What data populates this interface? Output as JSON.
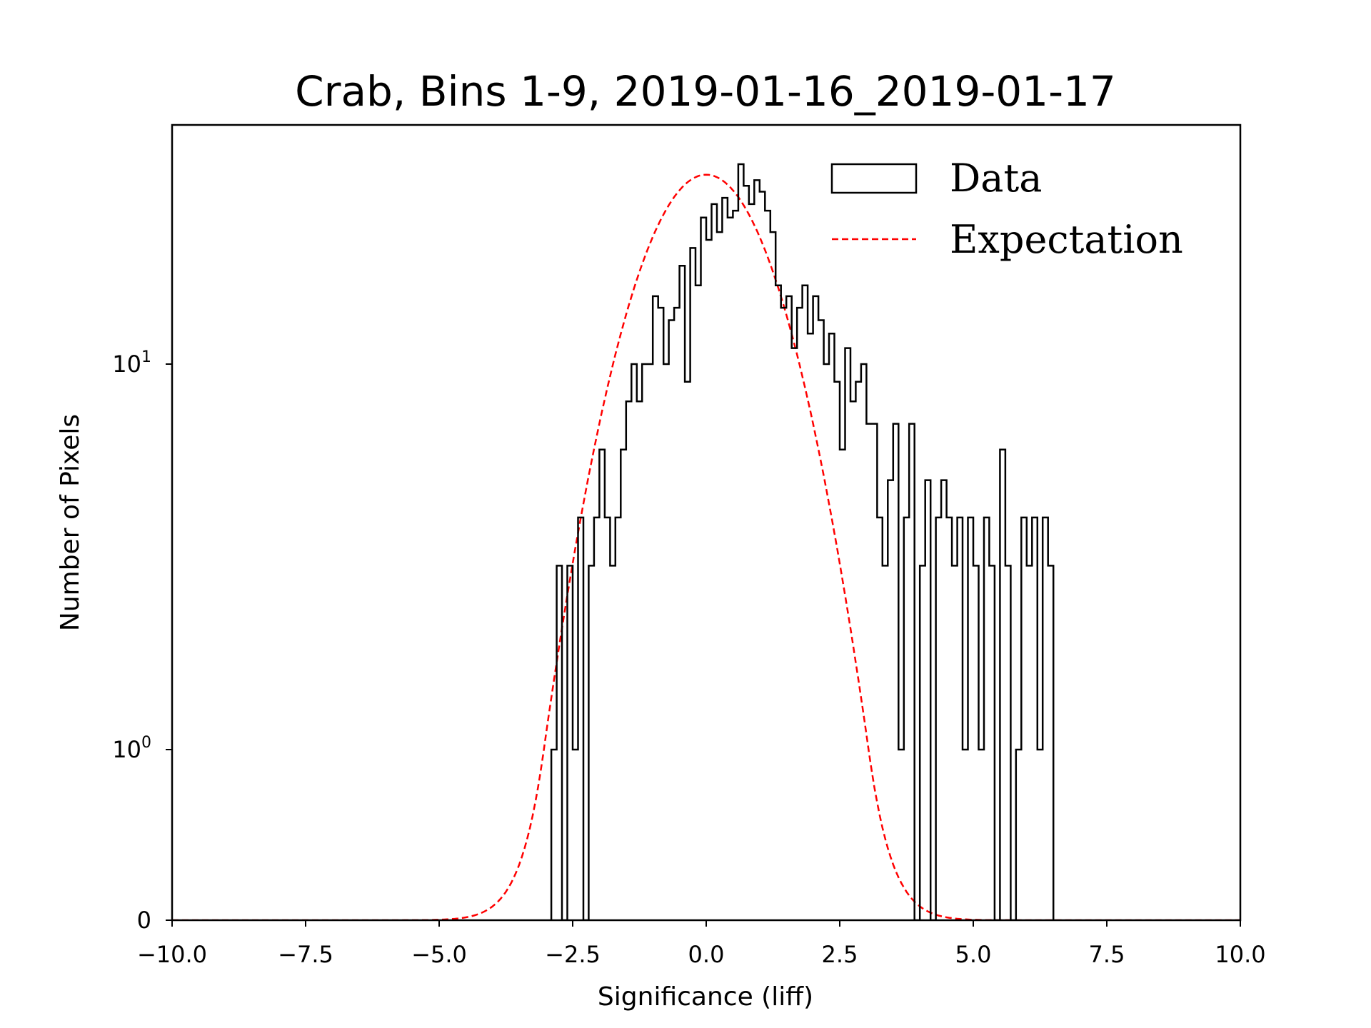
{
  "chart_data": {
    "type": "histogram",
    "title": "Crab, Bins 1-9, 2019-01-16_2019-01-17",
    "xlabel": "Significance (liff)",
    "ylabel": "Number of Pixels",
    "xlim": [
      -10,
      10
    ],
    "yscale": "symlog",
    "ylim": [
      0,
      40
    ],
    "grid": false,
    "x_ticks": [
      -10,
      -7.5,
      -5,
      -2.5,
      0,
      2.5,
      5,
      7.5,
      10
    ],
    "x_tick_labels": [
      "−10.0",
      "−7.5",
      "−5.0",
      "−2.5",
      "0.0",
      "2.5",
      "5.0",
      "7.5",
      "10.0"
    ],
    "y_ticks": [
      {
        "value": 0,
        "base": "0",
        "exp": ""
      },
      {
        "value": 1,
        "base": "10",
        "exp": "0"
      },
      {
        "value": 10,
        "base": "10",
        "exp": "1"
      }
    ],
    "legend": {
      "placement": "top-right",
      "entries": [
        {
          "label": "Data",
          "style": "step-outline",
          "color": "#000000"
        },
        {
          "label": "Expectation",
          "style": "dashed-line",
          "color": "#ff0000"
        }
      ]
    },
    "series": [
      {
        "name": "Data",
        "kind": "step-histogram",
        "color": "#000000",
        "bin_start": -2.9,
        "bin_width": 0.1,
        "counts": [
          1,
          3,
          0,
          3,
          1,
          4,
          0,
          3,
          4,
          6,
          4,
          3,
          4,
          6,
          8,
          10,
          8,
          10,
          10,
          15,
          14,
          10,
          13,
          14,
          18,
          9,
          20,
          16,
          24,
          21,
          26,
          22,
          27,
          24,
          25,
          33,
          29,
          26,
          30,
          28,
          25,
          22,
          16,
          14,
          15,
          11,
          14,
          16,
          12,
          15,
          13,
          10,
          12,
          9,
          6,
          11,
          8,
          9,
          10,
          7,
          7,
          4,
          3,
          5,
          7,
          1,
          4,
          7,
          0,
          3,
          5,
          0,
          4,
          5,
          4,
          3,
          4,
          1,
          4,
          3,
          1,
          4,
          3,
          0,
          6,
          3,
          0,
          1,
          4,
          3,
          4,
          1,
          4,
          3
        ]
      },
      {
        "name": "Expectation",
        "kind": "gaussian-curve",
        "color": "#ff0000",
        "amplitude": 31,
        "mean": 0,
        "sigma": 1.16
      }
    ]
  }
}
